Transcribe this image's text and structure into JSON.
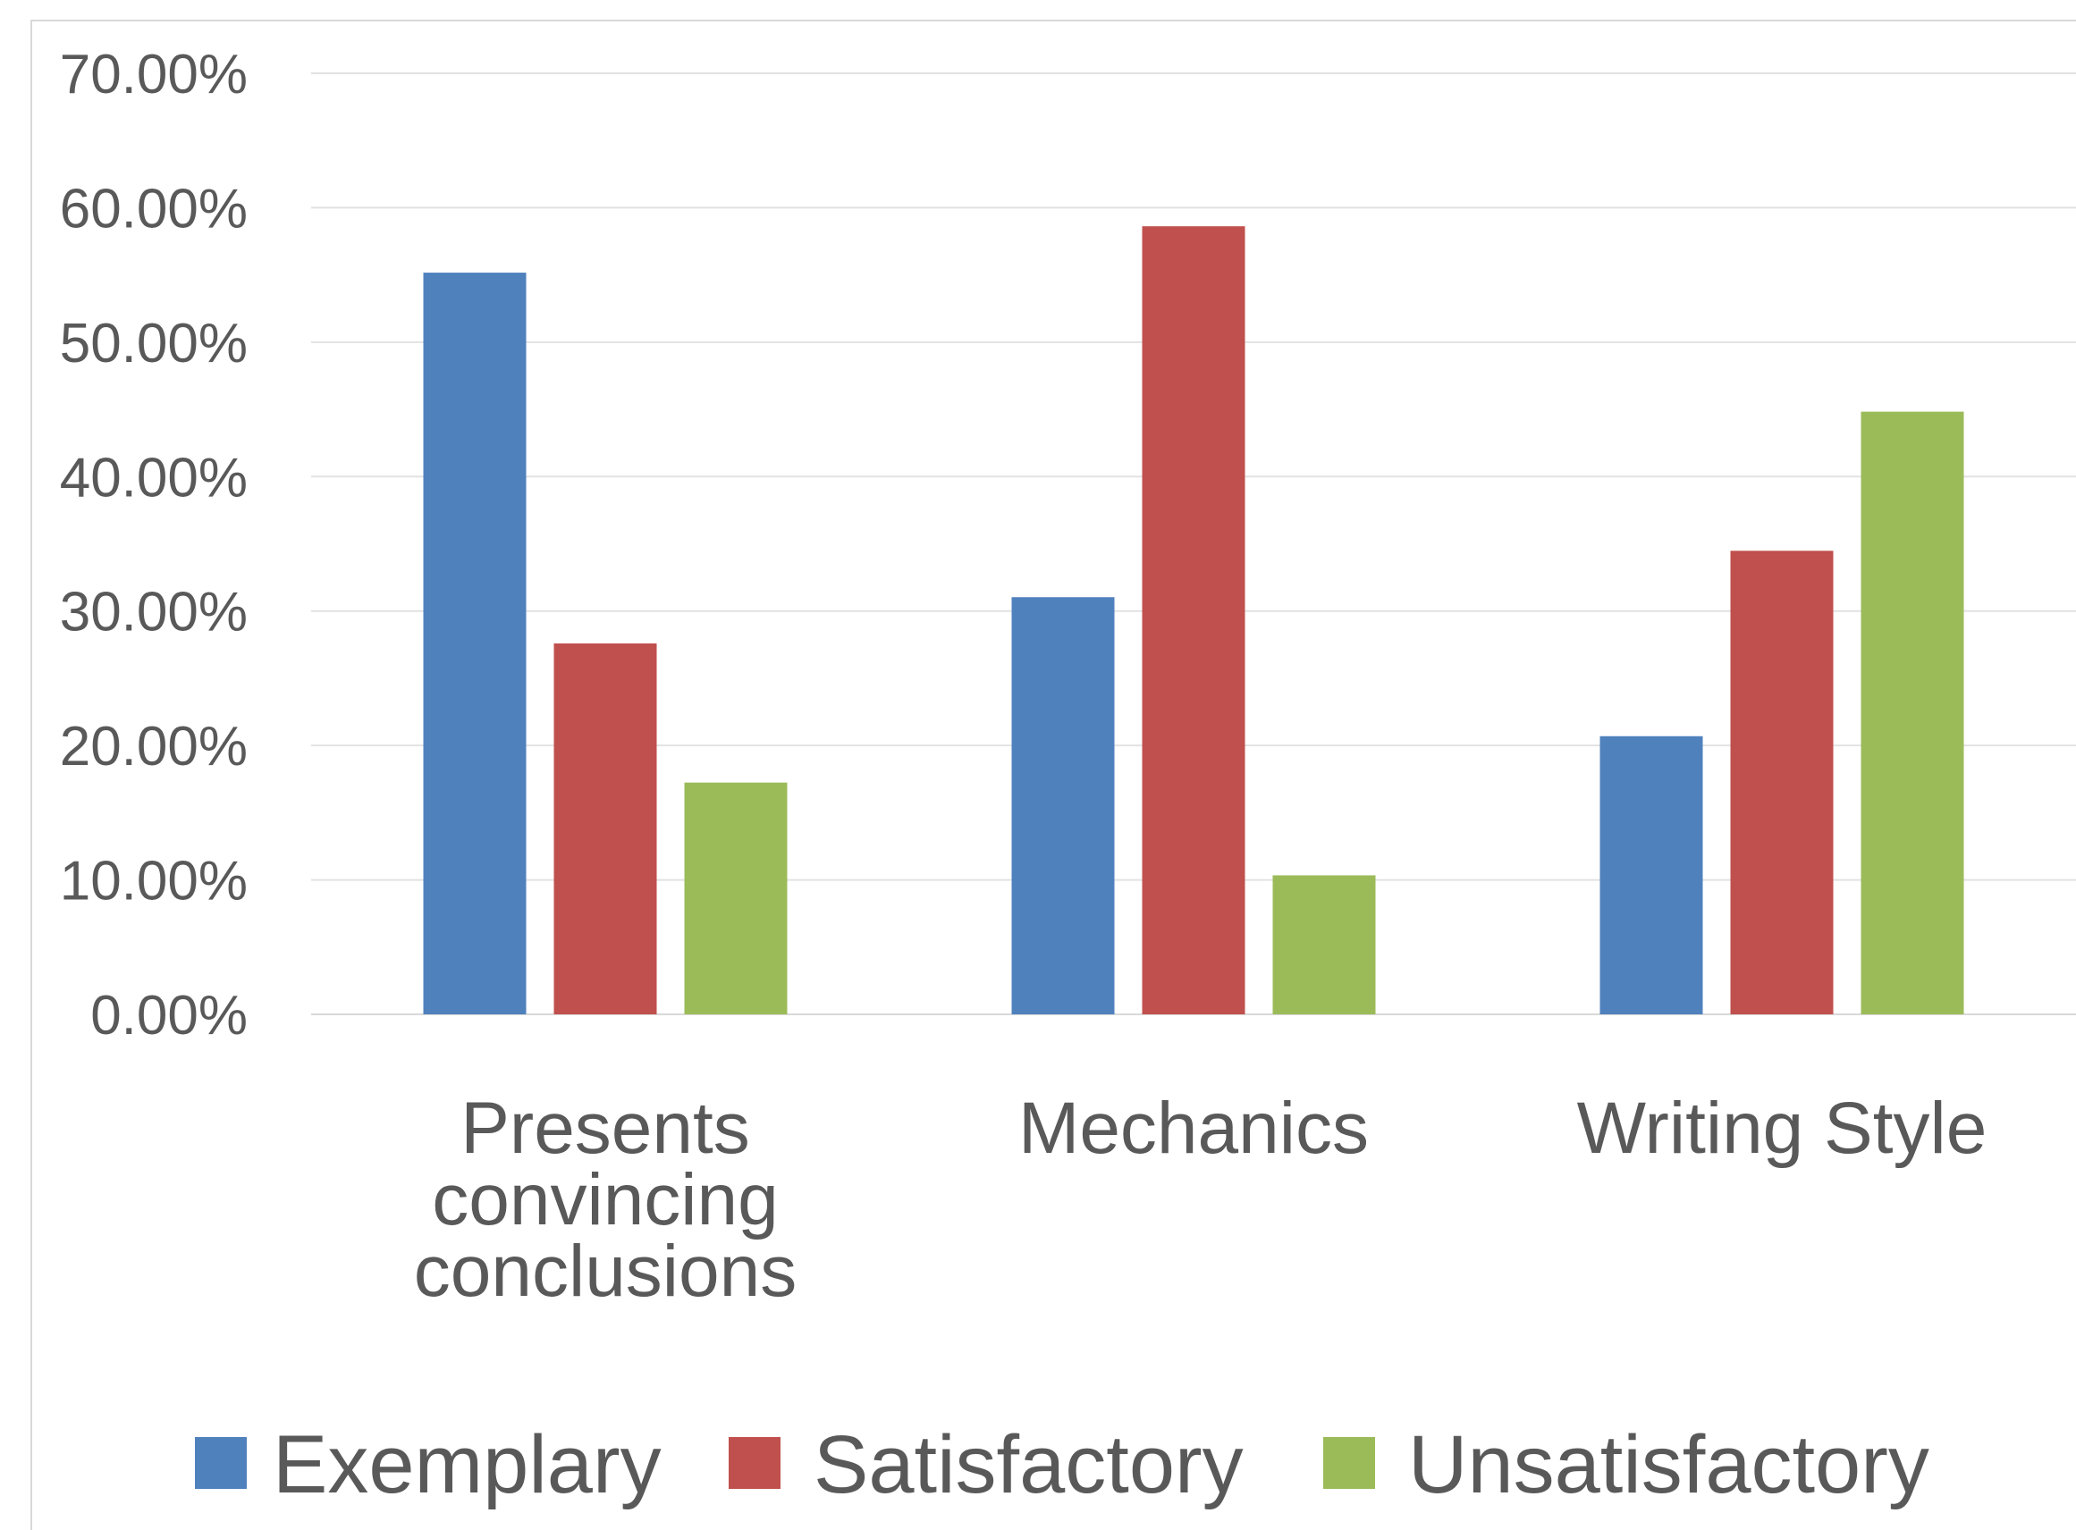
{
  "chart_data": {
    "type": "bar",
    "categories": [
      [
        "Presents",
        "convincing",
        "conclusions"
      ],
      [
        "Mechanics"
      ],
      [
        "Writing Style"
      ]
    ],
    "series": [
      {
        "name": "Exemplary",
        "color": "#4F81BD",
        "values": [
          55.17,
          31.03,
          20.69
        ]
      },
      {
        "name": "Satisfactory",
        "color": "#C0504D",
        "values": [
          27.59,
          58.62,
          34.48
        ]
      },
      {
        "name": "Unsatisfactory",
        "color": "#9BBB59",
        "values": [
          17.24,
          10.34,
          44.83
        ]
      }
    ],
    "ylim": [
      0,
      70
    ],
    "yticks": [
      "0.00%",
      "10.00%",
      "20.00%",
      "30.00%",
      "40.00%",
      "50.00%",
      "60.00%",
      "70.00%"
    ],
    "grid": true,
    "legend_position": "bottom"
  }
}
